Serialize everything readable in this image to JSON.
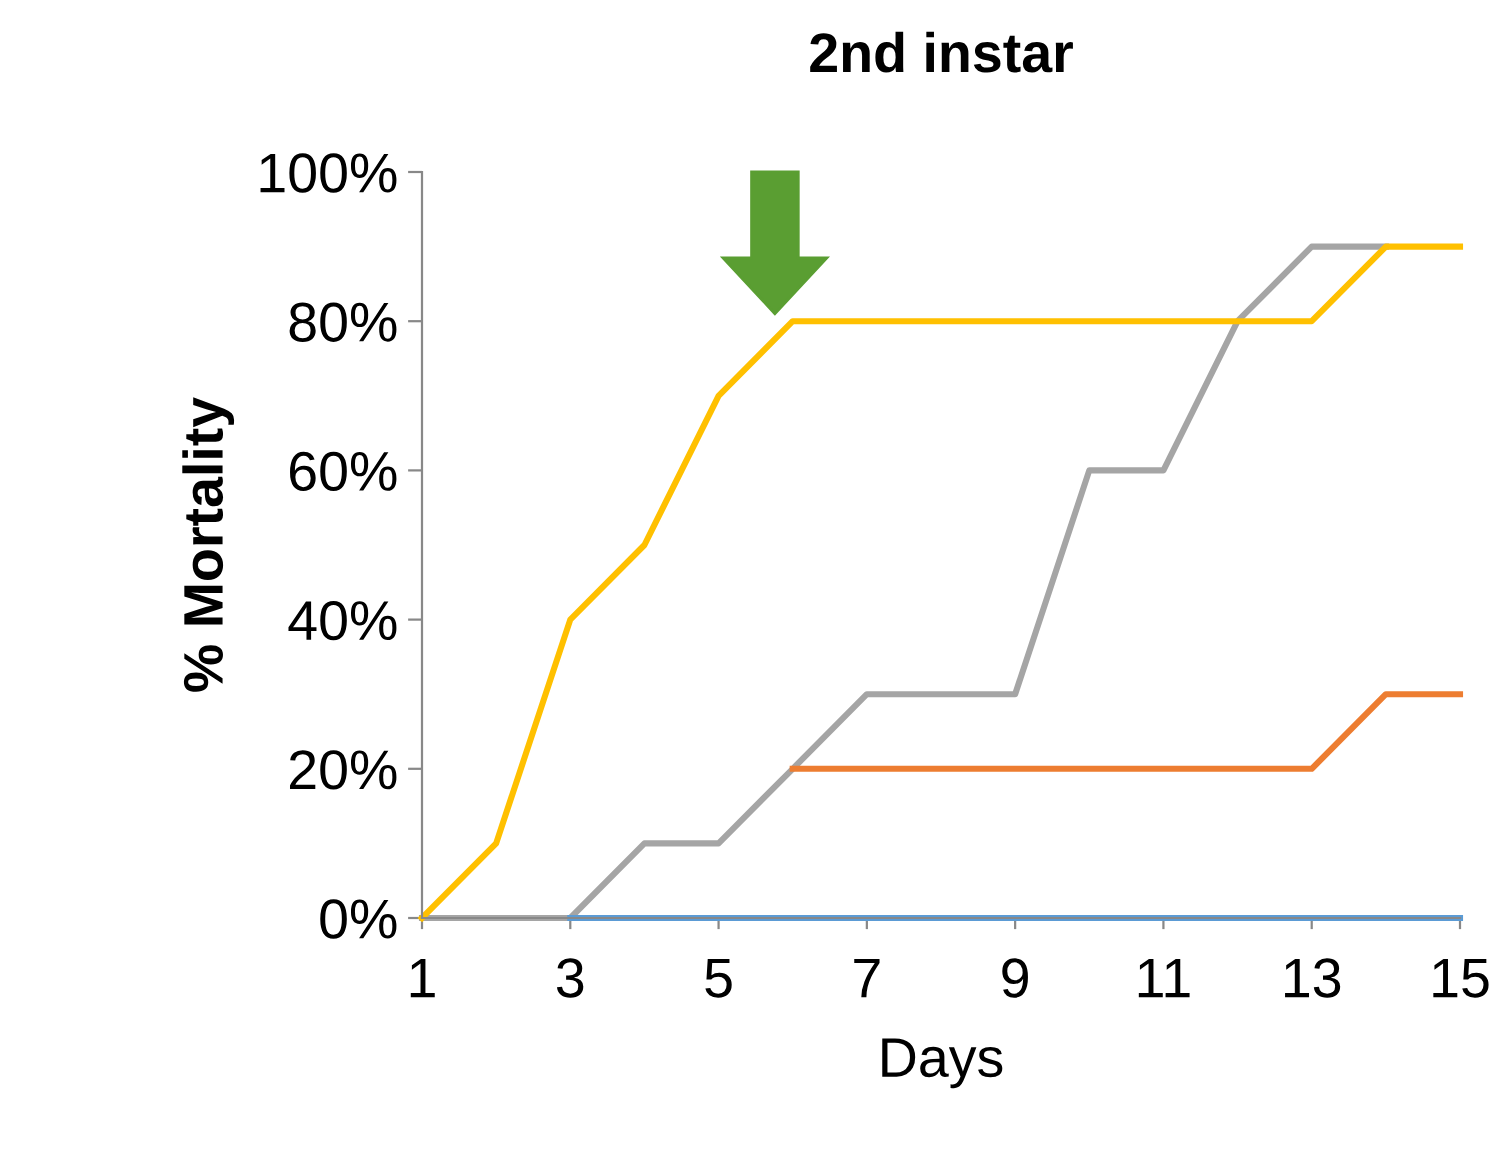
{
  "chart_data": {
    "type": "line",
    "title": "2nd instar",
    "xlabel": "Days",
    "ylabel": "% Mortality",
    "x": [
      1,
      2,
      3,
      4,
      5,
      6,
      7,
      8,
      9,
      10,
      11,
      12,
      13,
      14,
      15
    ],
    "series": [
      {
        "color": "#a5a5a5",
        "values": [
          0,
          0,
          0,
          10,
          10,
          20,
          30,
          30,
          30,
          60,
          60,
          80,
          90,
          90,
          null
        ]
      },
      {
        "color": "#ed7d31",
        "values": [
          null,
          null,
          null,
          null,
          null,
          20,
          20,
          20,
          20,
          20,
          20,
          20,
          20,
          30,
          30
        ]
      },
      {
        "color": "#5b9bd5",
        "values": [
          null,
          null,
          0,
          0,
          0,
          0,
          0,
          0,
          0,
          0,
          0,
          0,
          0,
          0,
          0
        ]
      },
      {
        "color": "#ffc000",
        "values": [
          0,
          10,
          40,
          50,
          70,
          80,
          80,
          80,
          80,
          80,
          80,
          80,
          80,
          90,
          90
        ]
      }
    ],
    "xlim": [
      1,
      15
    ],
    "xticks": [
      1,
      3,
      5,
      7,
      9,
      11,
      13,
      15
    ],
    "ylim": [
      0,
      100
    ],
    "yticks": [
      {
        "value": 0,
        "label": "0%"
      },
      {
        "value": 20,
        "label": "20%"
      },
      {
        "value": 40,
        "label": "40%"
      },
      {
        "value": 60,
        "label": "60%"
      },
      {
        "value": 80,
        "label": "80%"
      },
      {
        "value": 100,
        "label": "100%"
      }
    ],
    "grid": false,
    "legend": false,
    "marker": "none",
    "line_style": "solid"
  }
}
